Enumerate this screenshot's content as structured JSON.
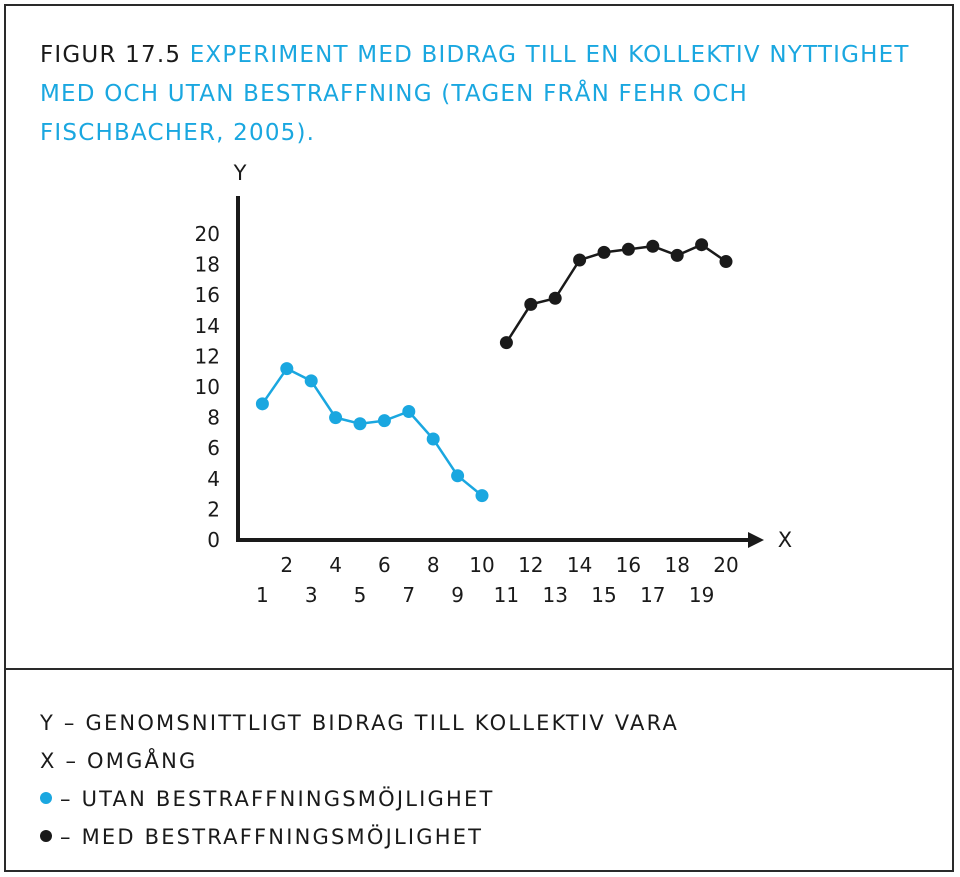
{
  "title": {
    "figure_no": "FIGUR 17.5",
    "text": "EXPERIMENT MED BIDRAG TILL EN KOLLEKTIV NYTTIGHET MED OCH UTAN BESTRAFFNING (TAGEN FRÅN FEHR OCH FISCHBACHER, 2005)."
  },
  "legend": {
    "y_desc": "Y – GENOMSNITTLIGT BIDRAG TILL KOLLEKTIV VARA",
    "x_desc": "X – OMGÅNG",
    "series_without": "– UTAN BESTRAFFNINGSMÖJLIGHET",
    "series_with": "– MED BESTRAFFNINGSMÖJLIGHET"
  },
  "colors": {
    "without": "#1aa7e0",
    "with": "#1a1a1a"
  },
  "chart_data": {
    "type": "line",
    "xlabel": "X",
    "ylabel": "Y",
    "ylim": [
      0,
      20
    ],
    "xlim": [
      0,
      20
    ],
    "yticks": [
      0,
      2,
      4,
      6,
      8,
      10,
      12,
      14,
      16,
      18,
      20
    ],
    "xticks_even": [
      2,
      4,
      6,
      8,
      10,
      12,
      14,
      16,
      18,
      20
    ],
    "xticks_odd": [
      1,
      3,
      5,
      7,
      9,
      11,
      13,
      15,
      17,
      19
    ],
    "grid": false,
    "series": [
      {
        "key": "without",
        "x": [
          1,
          2,
          3,
          4,
          5,
          6,
          7,
          8,
          9,
          10
        ],
        "y": [
          8.9,
          11.2,
          10.4,
          8.0,
          7.6,
          7.8,
          8.4,
          6.6,
          4.2,
          2.9
        ]
      },
      {
        "key": "with",
        "x": [
          11,
          12,
          13,
          14,
          15,
          16,
          17,
          18,
          19,
          20
        ],
        "y": [
          12.9,
          15.4,
          15.8,
          18.3,
          18.8,
          19.0,
          19.2,
          18.6,
          19.3,
          18.2
        ]
      }
    ]
  }
}
